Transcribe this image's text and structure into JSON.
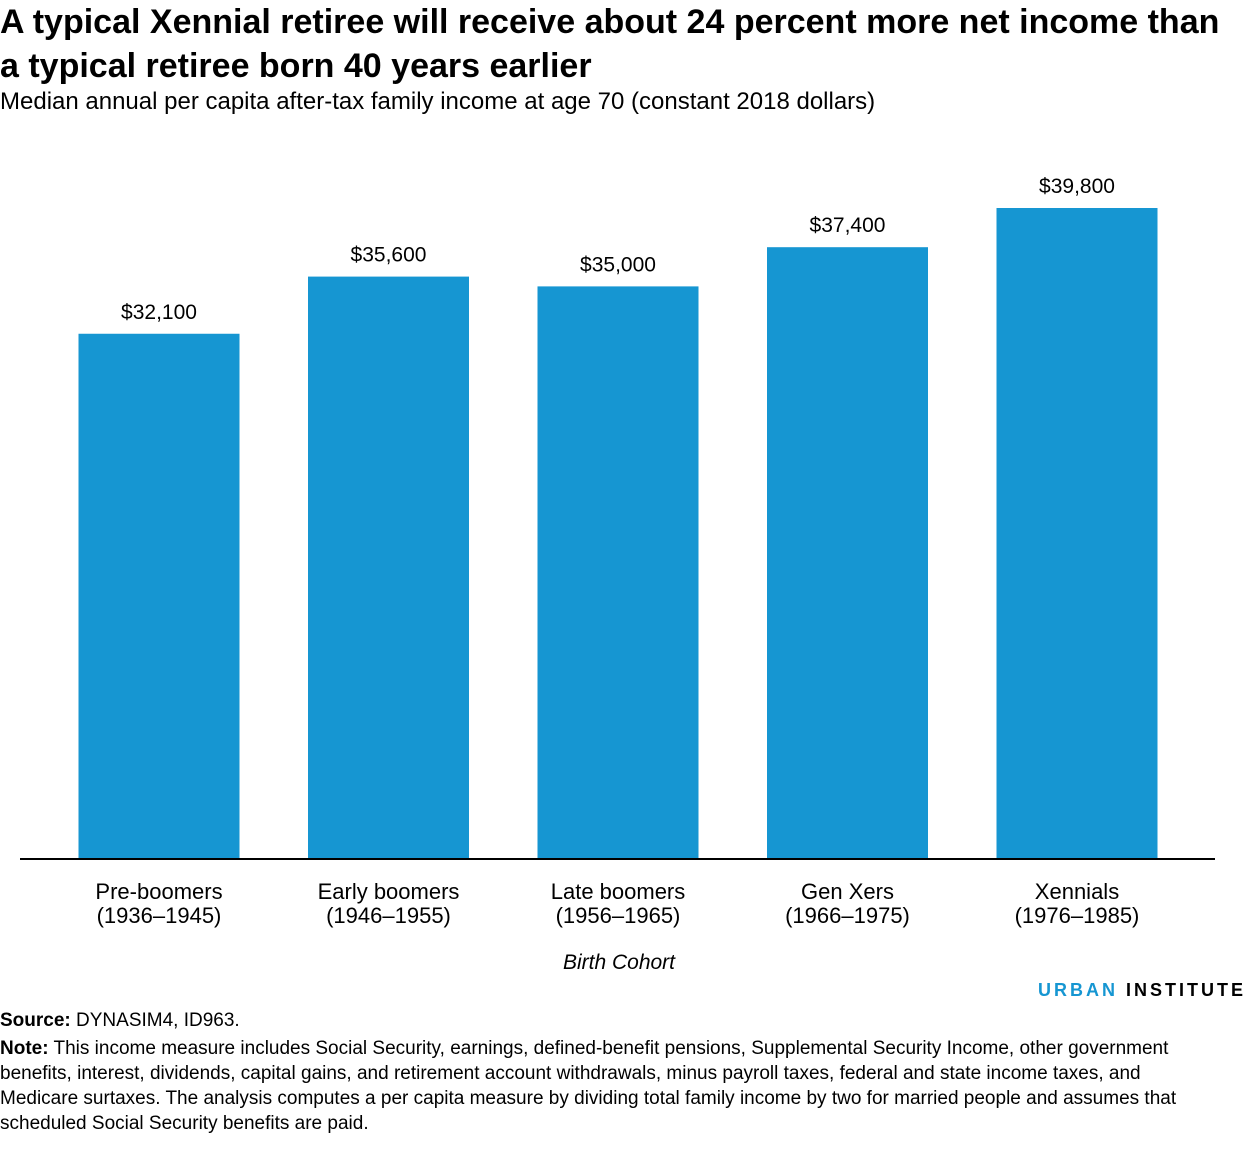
{
  "chart_data": {
    "type": "bar",
    "title": "A typical Xennial retiree will receive about 24 percent more net income than a typical retiree born 40 years earlier",
    "subtitle": "Median annual per capita after-tax family income at age 70 (constant 2018 dollars)",
    "categories": [
      {
        "name": "Pre-boomers",
        "years": "(1936–1945)"
      },
      {
        "name": "Early boomers",
        "years": "(1946–1955)"
      },
      {
        "name": "Late boomers",
        "years": "(1956–1965)"
      },
      {
        "name": "Gen Xers",
        "years": "(1966–1975)"
      },
      {
        "name": "Xennials",
        "years": "(1976–1985)"
      }
    ],
    "values": [
      32100,
      35600,
      35000,
      37400,
      39800
    ],
    "value_labels": [
      "$32,100",
      "$35,600",
      "$35,000",
      "$37,400",
      "$39,800"
    ],
    "xlabel": "Birth Cohort",
    "ylabel": "",
    "ylim": [
      0,
      40000
    ],
    "grid": false,
    "bar_color": "#1696d2"
  },
  "brand": {
    "part1": "URBAN",
    "part2": "INSTITUTE"
  },
  "source": {
    "label": "Source:",
    "text": " DYNASIM4, ID963."
  },
  "note": {
    "label": "Note:",
    "text": " This income measure includes Social Security, earnings, defined-benefit pensions, Supplemental Security Income, other government benefits, interest, dividends, capital gains, and retirement account withdrawals, minus payroll taxes, federal and state income taxes, and Medicare surtaxes. The analysis computes a per capita measure by dividing total family income by two for married people and assumes that scheduled Social Security benefits are paid."
  }
}
